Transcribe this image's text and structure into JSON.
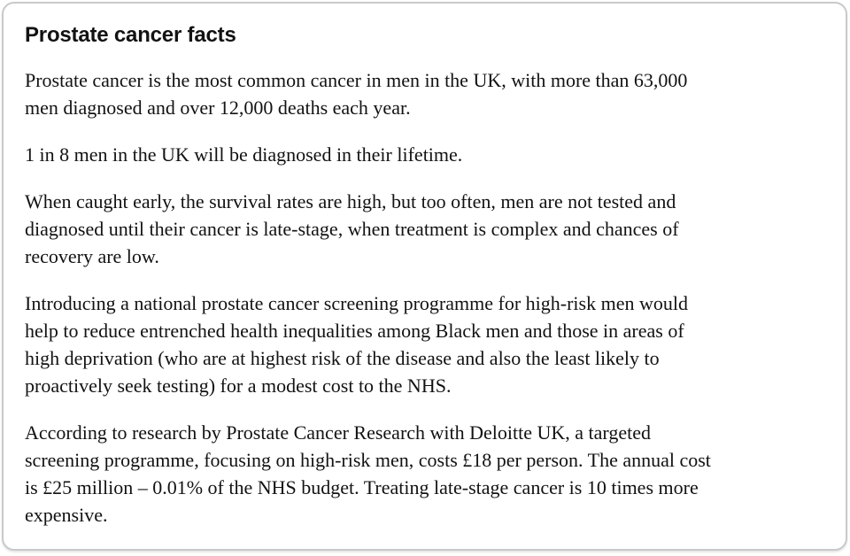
{
  "card": {
    "title": "Prostate cancer facts",
    "colors": {
      "text": "#121212",
      "border": "#c9c9c9",
      "background": "#ffffff"
    },
    "paragraphs": [
      {
        "lines": [
          "Prostate cancer is the most common cancer in men in the UK, with more than 63,000",
          "men diagnosed and over 12,000 deaths each year."
        ]
      },
      {
        "lines": [
          "1 in 8 men in the UK will be diagnosed in their lifetime."
        ]
      },
      {
        "lines": [
          "When caught early, the survival rates are high, but too often, men are not tested and",
          "diagnosed until their cancer is late-stage, when treatment is complex and chances of",
          "recovery are low."
        ]
      },
      {
        "lines": [
          "Introducing a national prostate cancer screening programme for high-risk men would",
          "help to reduce entrenched health inequalities among Black men and those in areas of",
          "high deprivation (who are at highest risk of the disease and also the least likely to",
          "proactively seek testing) for a modest cost to the NHS."
        ]
      },
      {
        "lines": [
          "According to research by Prostate Cancer Research with Deloitte UK, a targeted",
          "screening programme, focusing on high-risk men, costs £18 per person. The annual cost",
          "is £25 million – 0.01% of the NHS budget. Treating late-stage cancer is 10 times more",
          "expensive."
        ]
      }
    ]
  }
}
